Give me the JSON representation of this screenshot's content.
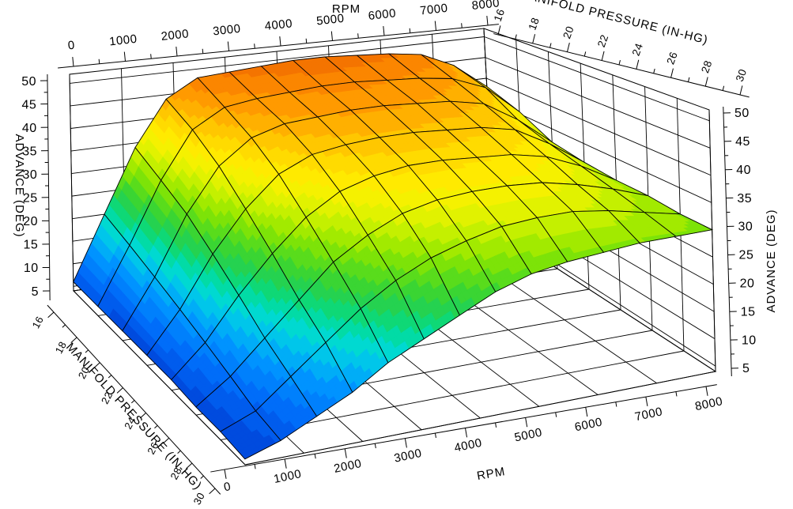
{
  "chart_data": {
    "type": "3d-surface",
    "title": "",
    "axes": {
      "rpm": {
        "label": "RPM",
        "range": [
          0,
          8000
        ],
        "ticks": [
          0,
          1000,
          2000,
          3000,
          4000,
          5000,
          6000,
          7000,
          8000
        ],
        "minor_tick_step": 500
      },
      "manifold_pressure": {
        "label": "MANIFOLD PRESSURE (IN-HG)",
        "range": [
          16,
          30
        ],
        "ticks": [
          16,
          18,
          20,
          22,
          24,
          26,
          28,
          30
        ],
        "minor_tick_step": 1
      },
      "advance": {
        "label": "ADVANCE (DEG)",
        "range": [
          5,
          50
        ],
        "ticks": [
          5,
          10,
          15,
          20,
          25,
          30,
          35,
          40,
          45,
          50
        ],
        "minor_tick_step": 2.5
      }
    },
    "grid": {
      "rpm_points": [
        0,
        615,
        1231,
        1846,
        2462,
        3077,
        3692,
        4308,
        4923,
        5538,
        6154,
        6769,
        7385,
        8000
      ],
      "manifold_pressure_points": [
        16,
        18,
        20,
        22,
        24,
        26,
        28,
        30
      ],
      "advance": [
        [
          6,
          20,
          34,
          44,
          48,
          48.5,
          49,
          49.5,
          49.5,
          49,
          48.5,
          47.5,
          44,
          38
        ],
        [
          6,
          18,
          31,
          41,
          45,
          46,
          46.5,
          47,
          47,
          46.5,
          46,
          45,
          42,
          35.5
        ],
        [
          6,
          16,
          28,
          37,
          42,
          44,
          44.5,
          45,
          45,
          44.5,
          44,
          42.5,
          38,
          32
        ],
        [
          6,
          14,
          24,
          32,
          38,
          41,
          42,
          42.5,
          42.5,
          42,
          41.5,
          40,
          36,
          31
        ],
        [
          6,
          12,
          20,
          27,
          33,
          37,
          39,
          40,
          40,
          39.5,
          39,
          37.5,
          34.5,
          30.5
        ],
        [
          5.5,
          10,
          16,
          22,
          28,
          32,
          35,
          36.5,
          37,
          37,
          36.5,
          35,
          33,
          30.5
        ],
        [
          5.5,
          8,
          13,
          18,
          23,
          27,
          30,
          32,
          33.5,
          34,
          34,
          33,
          31.5,
          30
        ],
        [
          5,
          7,
          10,
          13,
          17,
          20,
          23,
          26,
          28,
          29,
          29.5,
          30,
          30,
          30
        ]
      ]
    },
    "legend": "none",
    "grid_lines": "on"
  },
  "colors": {
    "background": "#FFFFFF",
    "mesh_line": "#000000",
    "box_line": "#000000",
    "band_step_deg": 1.8,
    "scale": [
      [
        5,
        "#0042D6"
      ],
      [
        9,
        "#0068F8"
      ],
      [
        13,
        "#0092FF"
      ],
      [
        16,
        "#00BCF2"
      ],
      [
        18,
        "#00D8DC"
      ],
      [
        20,
        "#00DCAE"
      ],
      [
        22,
        "#0ED878"
      ],
      [
        24,
        "#26D24E"
      ],
      [
        26,
        "#3ED62E"
      ],
      [
        28,
        "#62DE16"
      ],
      [
        30,
        "#8CE600"
      ],
      [
        32,
        "#B4EE00"
      ],
      [
        34,
        "#D8F200"
      ],
      [
        36,
        "#F2F200"
      ],
      [
        38,
        "#FFEC00"
      ],
      [
        40,
        "#FFDC00"
      ],
      [
        42,
        "#FFC600"
      ],
      [
        44,
        "#FFAC00"
      ],
      [
        46,
        "#FF9400"
      ],
      [
        48,
        "#F97E00"
      ],
      [
        50,
        "#EF6C00"
      ]
    ]
  }
}
